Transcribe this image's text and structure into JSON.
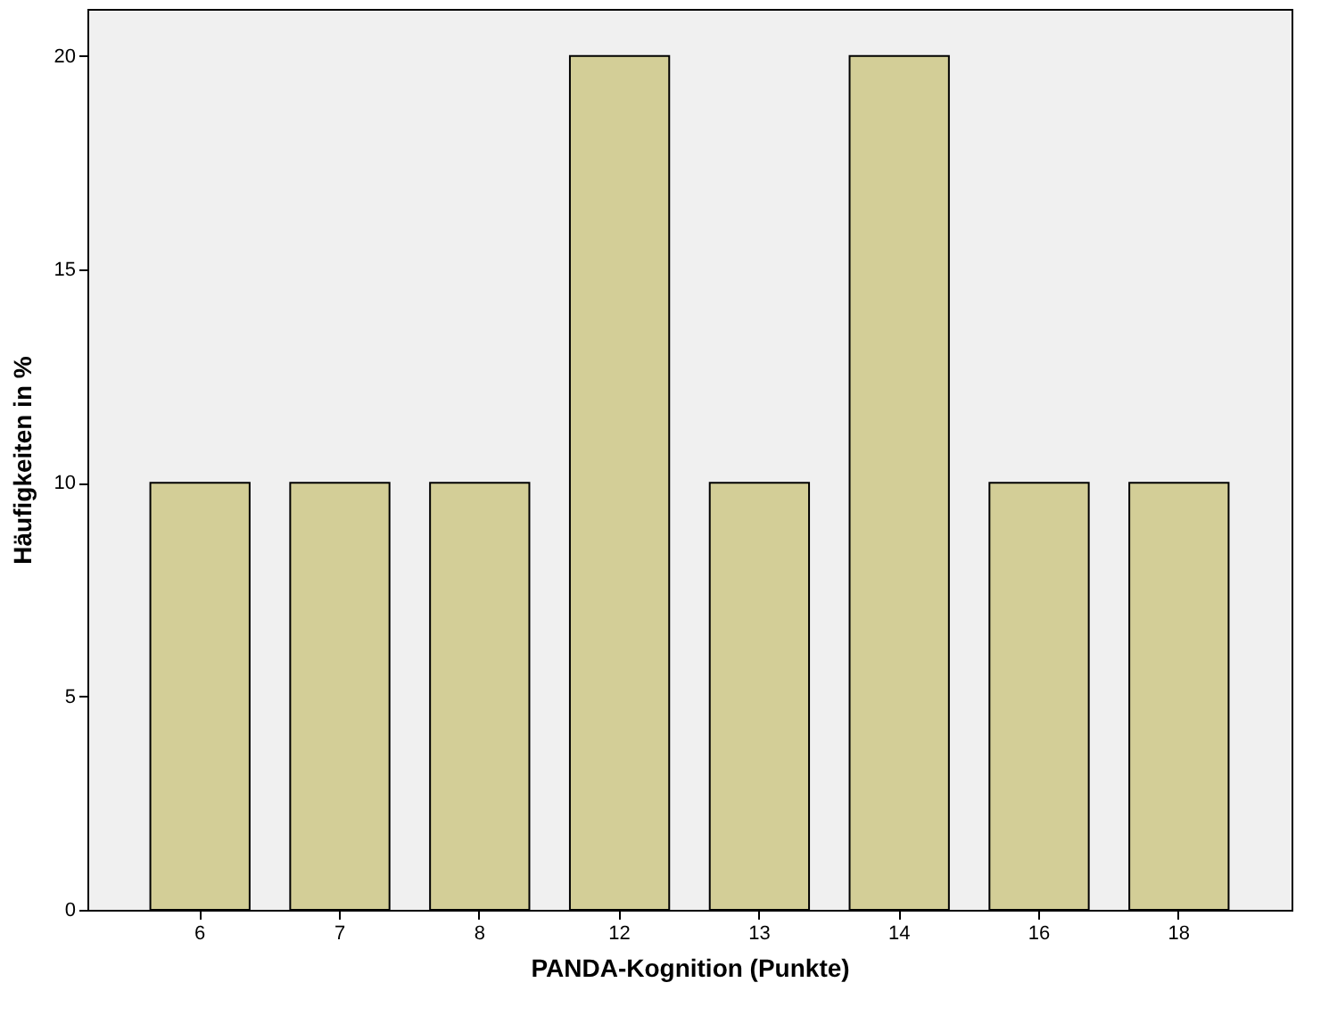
{
  "chart_data": {
    "type": "bar",
    "xlabel": "PANDA-Kognition (Punkte)",
    "ylabel": "Häufigkeiten in %",
    "categories": [
      "6",
      "7",
      "8",
      "12",
      "13",
      "14",
      "16",
      "18"
    ],
    "values": [
      10,
      10,
      10,
      20,
      10,
      20,
      10,
      10
    ],
    "color": "#d3ce97",
    "ylim": [
      0,
      21.1
    ],
    "yticks": [
      0,
      5,
      10,
      15,
      20
    ],
    "grid": false
  }
}
